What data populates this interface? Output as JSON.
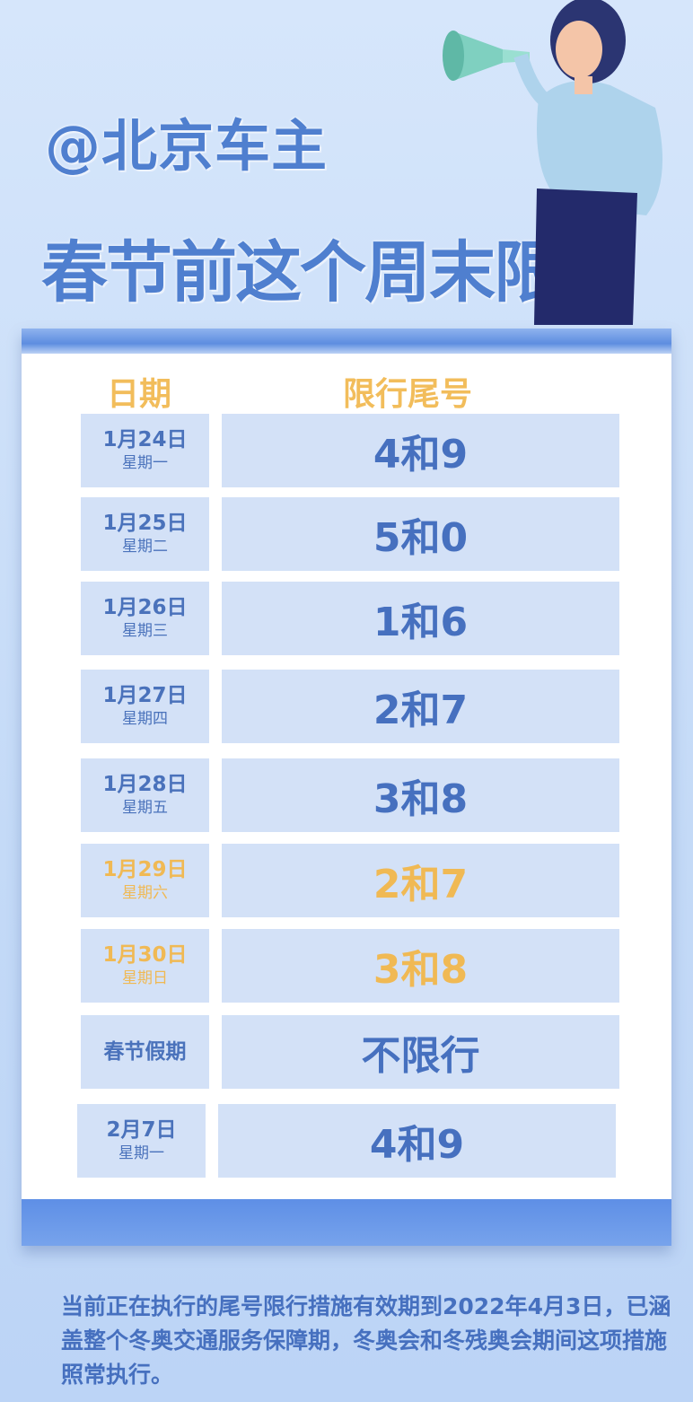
{
  "header": {
    "line1": "@北京车主",
    "line2": "春节前这个周末限行"
  },
  "table": {
    "headers": {
      "date": "日期",
      "plates": "限行尾号"
    },
    "rows": [
      {
        "date": "1月24日",
        "weekday": "星期一",
        "plates": "4和9",
        "weekend": false
      },
      {
        "date": "1月25日",
        "weekday": "星期二",
        "plates": "5和0",
        "weekend": false
      },
      {
        "date": "1月26日",
        "weekday": "星期三",
        "plates": "1和6",
        "weekend": false
      },
      {
        "date": "1月27日",
        "weekday": "星期四",
        "plates": "2和7",
        "weekend": false
      },
      {
        "date": "1月28日",
        "weekday": "星期五",
        "plates": "3和8",
        "weekend": false
      },
      {
        "date": "1月29日",
        "weekday": "星期六",
        "plates": "2和7",
        "weekend": true
      },
      {
        "date": "1月30日",
        "weekday": "星期日",
        "plates": "3和8",
        "weekend": true
      },
      {
        "date": "春节假期",
        "weekday": "",
        "plates": "不限行",
        "weekend": false
      },
      {
        "date": "2月7日",
        "weekday": "星期一",
        "plates": "4和9",
        "weekend": false
      }
    ]
  },
  "note": "当前正在执行的尾号限行措施有效期到2022年4月3日，已涵盖整个冬奥交通服务保障期，冬奥会和冬残奥会期间这项措施照常执行。",
  "colors": {
    "primary": "#4670bf",
    "weekend": "#f0b954",
    "cell": "#d3e1f7",
    "band": "#5e8fe6"
  }
}
